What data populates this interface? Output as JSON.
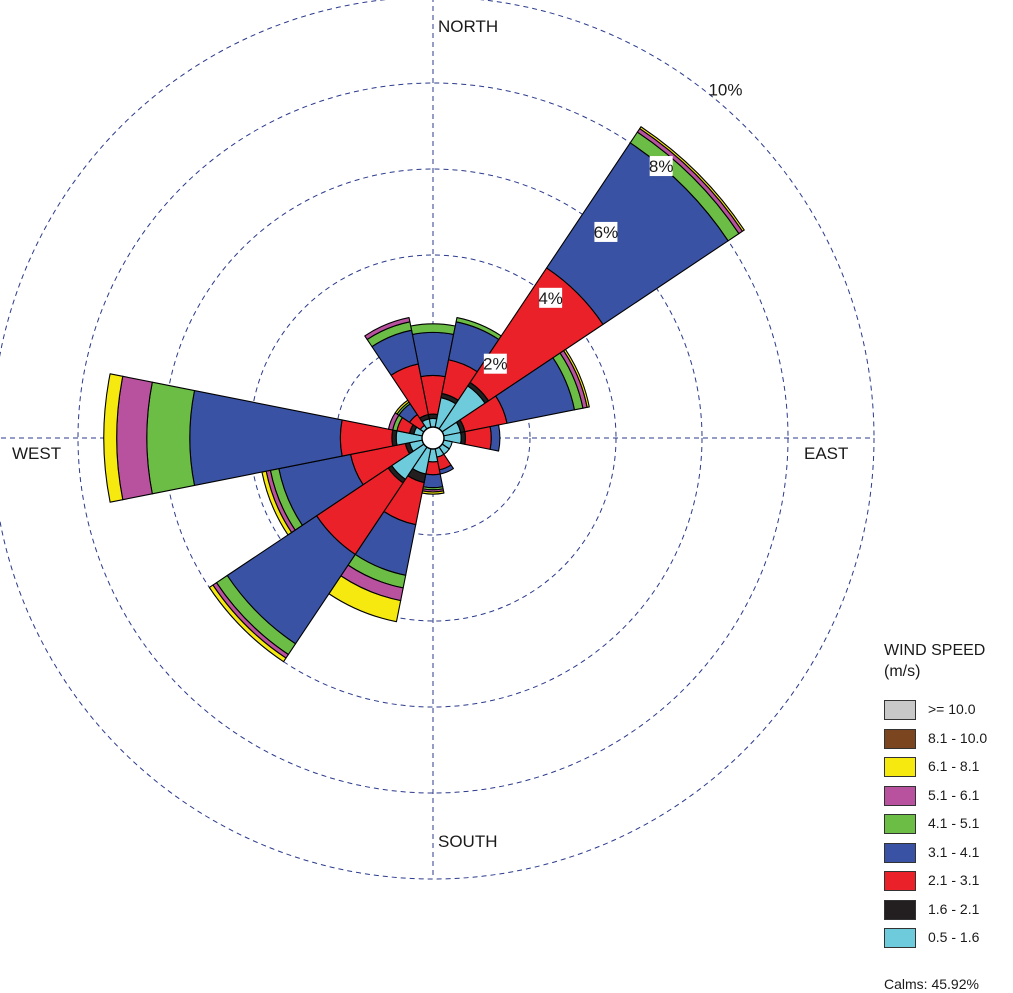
{
  "chart_data": {
    "type": "windrose",
    "directions": [
      "N",
      "NNE",
      "NE",
      "ENE",
      "E",
      "ESE",
      "SE",
      "SSE",
      "S",
      "SSW",
      "SW",
      "WSW",
      "W",
      "WNW",
      "NW",
      "NNW"
    ],
    "direction_labels": {
      "north": "NORTH",
      "east": "EAST",
      "south": "SOUTH",
      "west": "WEST"
    },
    "radial_ticks": [
      {
        "value": 2,
        "label": "2%"
      },
      {
        "value": 4,
        "label": "4%"
      },
      {
        "value": 6,
        "label": "6%"
      },
      {
        "value": 8,
        "label": "8%"
      },
      {
        "value": 10,
        "label": "10%"
      }
    ],
    "rmax": 10,
    "legend_title": "WIND SPEED",
    "legend_unit": "(m/s)",
    "bins": [
      {
        "label": ">= 10.0",
        "color": "#c8c8c8"
      },
      {
        "label": "8.1 - 10.0",
        "color": "#7b4520"
      },
      {
        "label": "6.1 - 8.1",
        "color": "#f5e90f"
      },
      {
        "label": "5.1 - 6.1",
        "color": "#b9529e"
      },
      {
        "label": "4.1 - 5.1",
        "color": "#6bbd45"
      },
      {
        "label": "3.1 - 4.1",
        "color": "#3a52a3"
      },
      {
        "label": "2.1 - 3.1",
        "color": "#ea2128"
      },
      {
        "label": "1.6 - 2.1",
        "color": "#231f20"
      },
      {
        "label": "0.5 - 1.6",
        "color": "#6ecbdb"
      }
    ],
    "calms": "Calms: 45.92%",
    "series_order": [
      "0.5 - 1.6",
      "1.6 - 2.1",
      "2.1 - 3.1",
      "3.1 - 4.1",
      "4.1 - 5.1",
      "5.1 - 6.1",
      "6.1 - 8.1",
      "8.1 - 10.0",
      ">= 10.0"
    ],
    "frequencies": [
      [
        0.2,
        0.1,
        0.9,
        1.0,
        0.2,
        0.0,
        0.0,
        0.0,
        0.0
      ],
      [
        0.7,
        0.1,
        0.8,
        0.9,
        0.1,
        0.0,
        0.0,
        0.0,
        0.0
      ],
      [
        1.2,
        0.1,
        3.2,
        3.5,
        0.3,
        0.1,
        0.05,
        0.0,
        0.0
      ],
      [
        0.4,
        0.1,
        1.0,
        1.6,
        0.2,
        0.1,
        0.05,
        0.0,
        0.0
      ],
      [
        0.4,
        0.1,
        0.6,
        0.2,
        0.0,
        0.0,
        0.0,
        0.0,
        0.0
      ],
      [
        0.2,
        0.0,
        0.0,
        0.0,
        0.0,
        0.0,
        0.0,
        0.0,
        0.0
      ],
      [
        0.2,
        0.0,
        0.0,
        0.0,
        0.0,
        0.0,
        0.0,
        0.0,
        0.0
      ],
      [
        0.2,
        0.0,
        0.3,
        0.1,
        0.0,
        0.0,
        0.0,
        0.0,
        0.0
      ],
      [
        0.3,
        0.0,
        0.3,
        0.3,
        0.05,
        0.05,
        0.05,
        0.0,
        0.0
      ],
      [
        0.6,
        0.2,
        1.0,
        1.2,
        0.3,
        0.3,
        0.5,
        0.0,
        0.0
      ],
      [
        0.9,
        0.1,
        2.0,
        2.5,
        0.3,
        0.1,
        0.1,
        0.0,
        0.0
      ],
      [
        0.3,
        0.1,
        1.3,
        1.7,
        0.2,
        0.1,
        0.1,
        0.0,
        0.0
      ],
      [
        0.6,
        0.1,
        1.2,
        3.5,
        1.0,
        0.7,
        0.3,
        0.0,
        0.0
      ],
      [
        0.2,
        0.1,
        0.3,
        0.0,
        0.1,
        0.1,
        0.0,
        0.0,
        0.0
      ],
      [
        0.1,
        0.0,
        0.3,
        0.3,
        0.05,
        0.0,
        0.05,
        0.0,
        0.0
      ],
      [
        0.2,
        0.1,
        1.2,
        0.8,
        0.2,
        0.1,
        0.0,
        0.0,
        0.0
      ]
    ]
  }
}
